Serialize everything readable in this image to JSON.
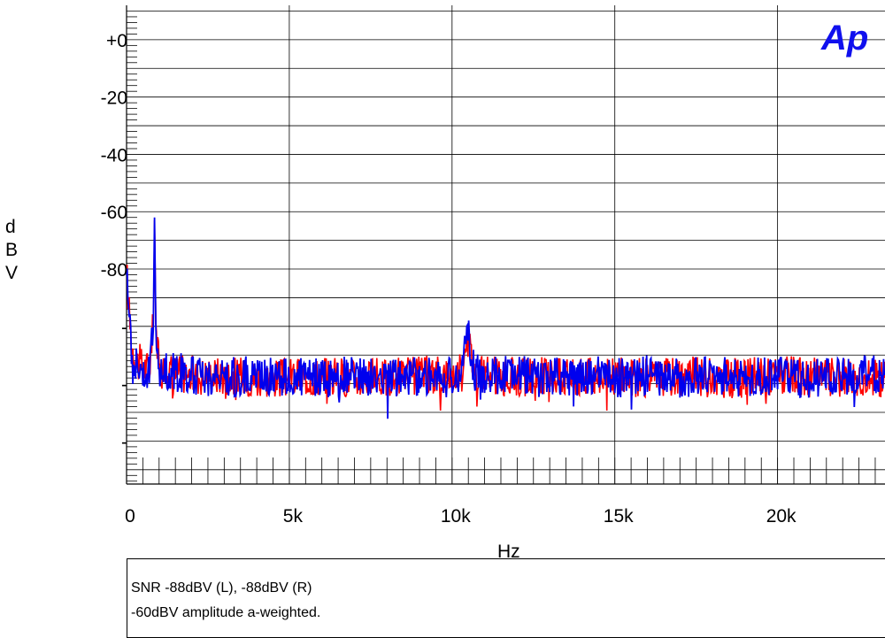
{
  "chart_data": {
    "type": "line",
    "xlabel": "Hz",
    "ylabel": "dBV",
    "xlim": [
      0,
      23300
    ],
    "ylim": [
      -155,
      12
    ],
    "x_ticks": [
      {
        "value": 0,
        "label": "0"
      },
      {
        "value": 5000,
        "label": "5k"
      },
      {
        "value": 10000,
        "label": "10k"
      },
      {
        "value": 15000,
        "label": "15k"
      },
      {
        "value": 20000,
        "label": "20k"
      }
    ],
    "y_ticks": [
      {
        "value": 0,
        "label": "+0"
      },
      {
        "value": -20,
        "label": "-20"
      },
      {
        "value": -40,
        "label": "-40"
      },
      {
        "value": -60,
        "label": "-60"
      },
      {
        "value": -80,
        "label": "-80"
      },
      {
        "value": -100,
        "label": "-"
      },
      {
        "value": -120,
        "label": "-"
      },
      {
        "value": -140,
        "label": "-"
      }
    ],
    "grid": true,
    "series": [
      {
        "color": "#ff0000",
        "x": [
          0,
          60,
          150,
          300,
          500,
          700,
          820,
          860,
          900,
          1000,
          1500,
          2000,
          3000,
          4000,
          5000,
          6000,
          7000,
          8000,
          9000,
          10000,
          10300,
          10450,
          10550,
          10700,
          11000,
          12000,
          13000,
          14000,
          15000,
          16000,
          17000,
          18000,
          19000,
          20000,
          21000,
          22000,
          23000,
          23300
        ],
        "values": [
          -80,
          -92,
          -106,
          -112,
          -114,
          -115,
          -99,
          -63,
          -99,
          -115,
          -116,
          -117,
          -117,
          -118,
          -118,
          -117,
          -118,
          -118,
          -117,
          -117,
          -116,
          -101,
          -108,
          -116,
          -117,
          -118,
          -117,
          -118,
          -117,
          -118,
          -117,
          -118,
          -118,
          -117,
          -118,
          -117,
          -118,
          -118
        ]
      },
      {
        "color": "#0000ee",
        "x": [
          0,
          60,
          150,
          300,
          500,
          700,
          820,
          860,
          900,
          1000,
          1500,
          2000,
          3000,
          4000,
          5000,
          6000,
          7000,
          8000,
          9000,
          10000,
          10300,
          10450,
          10550,
          10700,
          11000,
          12000,
          13000,
          14000,
          15000,
          16000,
          17000,
          18000,
          19000,
          20000,
          21000,
          22000,
          23000,
          23300
        ],
        "values": [
          -82,
          -93,
          -107,
          -113,
          -115,
          -116,
          -100,
          -62,
          -100,
          -116,
          -116,
          -117,
          -118,
          -117,
          -118,
          -118,
          -117,
          -118,
          -117,
          -118,
          -116,
          -100,
          -107,
          -116,
          -117,
          -117,
          -118,
          -117,
          -118,
          -117,
          -118,
          -117,
          -118,
          -117,
          -118,
          -118,
          -117,
          -117
        ]
      }
    ],
    "annotations": [
      "SNR -88dBV (L), -88dBV (R)",
      "-60dBV amplitude a-weighted."
    ]
  },
  "logo": {
    "text": "Ap"
  }
}
